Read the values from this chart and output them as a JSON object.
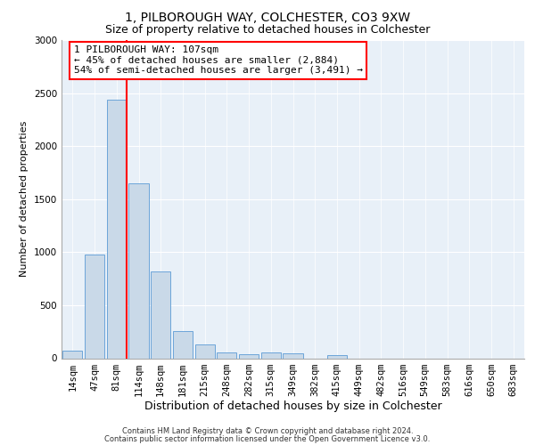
{
  "title1": "1, PILBOROUGH WAY, COLCHESTER, CO3 9XW",
  "title2": "Size of property relative to detached houses in Colchester",
  "xlabel": "Distribution of detached houses by size in Colchester",
  "ylabel": "Number of detached properties",
  "categories": [
    "14sqm",
    "47sqm",
    "81sqm",
    "114sqm",
    "148sqm",
    "181sqm",
    "215sqm",
    "248sqm",
    "282sqm",
    "315sqm",
    "349sqm",
    "382sqm",
    "415sqm",
    "449sqm",
    "482sqm",
    "516sqm",
    "549sqm",
    "583sqm",
    "616sqm",
    "650sqm",
    "683sqm"
  ],
  "values": [
    75,
    980,
    2440,
    1650,
    820,
    260,
    130,
    55,
    40,
    55,
    45,
    0,
    30,
    0,
    0,
    0,
    0,
    0,
    0,
    0,
    0
  ],
  "bar_color": "#c9d9e8",
  "bar_edge_color": "#5b9bd5",
  "vline_x_index": 2,
  "vline_color": "#ff0000",
  "annotation_text": "1 PILBOROUGH WAY: 107sqm\n← 45% of detached houses are smaller (2,884)\n54% of semi-detached houses are larger (3,491) →",
  "annotation_box_color": "#ffffff",
  "annotation_box_edge": "#ff0000",
  "ylim": [
    0,
    3000
  ],
  "yticks": [
    0,
    500,
    1000,
    1500,
    2000,
    2500,
    3000
  ],
  "footer1": "Contains HM Land Registry data © Crown copyright and database right 2024.",
  "footer2": "Contains public sector information licensed under the Open Government Licence v3.0.",
  "background_color": "#e8f0f8",
  "plot_bg_color": "#ffffff",
  "title1_fontsize": 10,
  "title2_fontsize": 9,
  "ylabel_fontsize": 8,
  "xlabel_fontsize": 9,
  "tick_fontsize": 7.5,
  "annotation_fontsize": 8,
  "footer_fontsize": 6
}
